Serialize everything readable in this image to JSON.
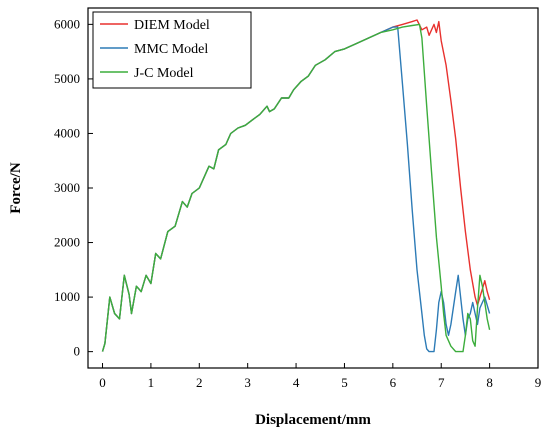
{
  "chart_data": {
    "type": "line",
    "title": "",
    "xlabel": "Displacement/mm",
    "ylabel": "Force/N",
    "xlim": [
      -0.3,
      9
    ],
    "ylim": [
      -300,
      6300
    ],
    "x_ticks": [
      0,
      1,
      2,
      3,
      4,
      5,
      6,
      7,
      8,
      9
    ],
    "y_ticks": [
      0,
      1000,
      2000,
      3000,
      4000,
      5000,
      6000
    ],
    "legend_position": "top-left",
    "grid": false,
    "series": [
      {
        "name": "DIEM Model",
        "color": "#e8312e",
        "points": [
          [
            0,
            0
          ],
          [
            0.05,
            150
          ],
          [
            0.15,
            1000
          ],
          [
            0.25,
            700
          ],
          [
            0.35,
            600
          ],
          [
            0.45,
            1400
          ],
          [
            0.55,
            1050
          ],
          [
            0.6,
            700
          ],
          [
            0.7,
            1200
          ],
          [
            0.8,
            1100
          ],
          [
            0.9,
            1400
          ],
          [
            1,
            1250
          ],
          [
            1.1,
            1800
          ],
          [
            1.2,
            1700
          ],
          [
            1.35,
            2200
          ],
          [
            1.5,
            2300
          ],
          [
            1.65,
            2750
          ],
          [
            1.75,
            2650
          ],
          [
            1.85,
            2900
          ],
          [
            2,
            3000
          ],
          [
            2.2,
            3400
          ],
          [
            2.3,
            3350
          ],
          [
            2.4,
            3700
          ],
          [
            2.55,
            3800
          ],
          [
            2.65,
            4000
          ],
          [
            2.8,
            4100
          ],
          [
            2.95,
            4150
          ],
          [
            3.1,
            4250
          ],
          [
            3.25,
            4350
          ],
          [
            3.4,
            4500
          ],
          [
            3.45,
            4400
          ],
          [
            3.55,
            4450
          ],
          [
            3.7,
            4650
          ],
          [
            3.85,
            4650
          ],
          [
            3.95,
            4800
          ],
          [
            4.1,
            4950
          ],
          [
            4.25,
            5050
          ],
          [
            4.4,
            5250
          ],
          [
            4.6,
            5350
          ],
          [
            4.8,
            5500
          ],
          [
            5,
            5550
          ],
          [
            5.25,
            5650
          ],
          [
            5.5,
            5750
          ],
          [
            5.75,
            5850
          ],
          [
            6,
            5950
          ],
          [
            6.2,
            6000
          ],
          [
            6.4,
            6050
          ],
          [
            6.5,
            6080
          ],
          [
            6.6,
            5900
          ],
          [
            6.7,
            5950
          ],
          [
            6.75,
            5800
          ],
          [
            6.85,
            6000
          ],
          [
            6.9,
            5850
          ],
          [
            6.95,
            6050
          ],
          [
            7,
            5700
          ],
          [
            7.1,
            5250
          ],
          [
            7.2,
            4600
          ],
          [
            7.3,
            3900
          ],
          [
            7.4,
            3000
          ],
          [
            7.5,
            2200
          ],
          [
            7.6,
            1500
          ],
          [
            7.7,
            1000
          ],
          [
            7.75,
            850
          ],
          [
            7.8,
            1000
          ],
          [
            7.85,
            1150
          ],
          [
            7.9,
            1300
          ],
          [
            7.95,
            1100
          ],
          [
            8,
            950
          ]
        ]
      },
      {
        "name": "MMC Model",
        "color": "#2d7bb6",
        "points": [
          [
            0,
            0
          ],
          [
            0.05,
            150
          ],
          [
            0.15,
            1000
          ],
          [
            0.25,
            700
          ],
          [
            0.35,
            600
          ],
          [
            0.45,
            1400
          ],
          [
            0.55,
            1050
          ],
          [
            0.6,
            700
          ],
          [
            0.7,
            1200
          ],
          [
            0.8,
            1100
          ],
          [
            0.9,
            1400
          ],
          [
            1,
            1250
          ],
          [
            1.1,
            1800
          ],
          [
            1.2,
            1700
          ],
          [
            1.35,
            2200
          ],
          [
            1.5,
            2300
          ],
          [
            1.65,
            2750
          ],
          [
            1.75,
            2650
          ],
          [
            1.85,
            2900
          ],
          [
            2,
            3000
          ],
          [
            2.2,
            3400
          ],
          [
            2.3,
            3350
          ],
          [
            2.4,
            3700
          ],
          [
            2.55,
            3800
          ],
          [
            2.65,
            4000
          ],
          [
            2.8,
            4100
          ],
          [
            2.95,
            4150
          ],
          [
            3.1,
            4250
          ],
          [
            3.25,
            4350
          ],
          [
            3.4,
            4500
          ],
          [
            3.45,
            4400
          ],
          [
            3.55,
            4450
          ],
          [
            3.7,
            4650
          ],
          [
            3.85,
            4650
          ],
          [
            3.95,
            4800
          ],
          [
            4.1,
            4950
          ],
          [
            4.25,
            5050
          ],
          [
            4.4,
            5250
          ],
          [
            4.6,
            5350
          ],
          [
            4.8,
            5500
          ],
          [
            5,
            5550
          ],
          [
            5.25,
            5650
          ],
          [
            5.5,
            5750
          ],
          [
            5.75,
            5850
          ],
          [
            6,
            5950
          ],
          [
            6.1,
            5950
          ],
          [
            6.2,
            4900
          ],
          [
            6.3,
            3800
          ],
          [
            6.4,
            2600
          ],
          [
            6.5,
            1500
          ],
          [
            6.6,
            700
          ],
          [
            6.65,
            300
          ],
          [
            6.7,
            50
          ],
          [
            6.75,
            0
          ],
          [
            6.85,
            0
          ],
          [
            6.9,
            400
          ],
          [
            6.95,
            900
          ],
          [
            7,
            1100
          ],
          [
            7.05,
            900
          ],
          [
            7.1,
            500
          ],
          [
            7.15,
            300
          ],
          [
            7.2,
            500
          ],
          [
            7.3,
            1100
          ],
          [
            7.35,
            1400
          ],
          [
            7.4,
            1000
          ],
          [
            7.45,
            600
          ],
          [
            7.5,
            300
          ],
          [
            7.55,
            600
          ],
          [
            7.6,
            700
          ],
          [
            7.65,
            900
          ],
          [
            7.7,
            700
          ],
          [
            7.75,
            500
          ],
          [
            7.8,
            800
          ],
          [
            7.9,
            1000
          ],
          [
            8,
            700
          ]
        ]
      },
      {
        "name": "J-C Model",
        "color": "#3cad3c",
        "points": [
          [
            0,
            0
          ],
          [
            0.05,
            150
          ],
          [
            0.15,
            1000
          ],
          [
            0.25,
            700
          ],
          [
            0.35,
            600
          ],
          [
            0.45,
            1400
          ],
          [
            0.55,
            1050
          ],
          [
            0.6,
            700
          ],
          [
            0.7,
            1200
          ],
          [
            0.8,
            1100
          ],
          [
            0.9,
            1400
          ],
          [
            1,
            1250
          ],
          [
            1.1,
            1800
          ],
          [
            1.2,
            1700
          ],
          [
            1.35,
            2200
          ],
          [
            1.5,
            2300
          ],
          [
            1.65,
            2750
          ],
          [
            1.75,
            2650
          ],
          [
            1.85,
            2900
          ],
          [
            2,
            3000
          ],
          [
            2.2,
            3400
          ],
          [
            2.3,
            3350
          ],
          [
            2.4,
            3700
          ],
          [
            2.55,
            3800
          ],
          [
            2.65,
            4000
          ],
          [
            2.8,
            4100
          ],
          [
            2.95,
            4150
          ],
          [
            3.1,
            4250
          ],
          [
            3.25,
            4350
          ],
          [
            3.4,
            4500
          ],
          [
            3.45,
            4400
          ],
          [
            3.55,
            4450
          ],
          [
            3.7,
            4650
          ],
          [
            3.85,
            4650
          ],
          [
            3.95,
            4800
          ],
          [
            4.1,
            4950
          ],
          [
            4.25,
            5050
          ],
          [
            4.4,
            5250
          ],
          [
            4.6,
            5350
          ],
          [
            4.8,
            5500
          ],
          [
            5,
            5550
          ],
          [
            5.25,
            5650
          ],
          [
            5.5,
            5750
          ],
          [
            5.75,
            5850
          ],
          [
            6,
            5900
          ],
          [
            6.2,
            5950
          ],
          [
            6.4,
            5980
          ],
          [
            6.55,
            6000
          ],
          [
            6.6,
            5750
          ],
          [
            6.7,
            4500
          ],
          [
            6.8,
            3300
          ],
          [
            6.9,
            2100
          ],
          [
            7,
            1200
          ],
          [
            7.05,
            700
          ],
          [
            7.1,
            300
          ],
          [
            7.2,
            100
          ],
          [
            7.3,
            0
          ],
          [
            7.45,
            0
          ],
          [
            7.5,
            300
          ],
          [
            7.55,
            700
          ],
          [
            7.6,
            600
          ],
          [
            7.65,
            200
          ],
          [
            7.7,
            100
          ],
          [
            7.75,
            800
          ],
          [
            7.8,
            1400
          ],
          [
            7.85,
            1200
          ],
          [
            7.9,
            900
          ],
          [
            7.95,
            600
          ],
          [
            8,
            400
          ]
        ]
      }
    ]
  }
}
